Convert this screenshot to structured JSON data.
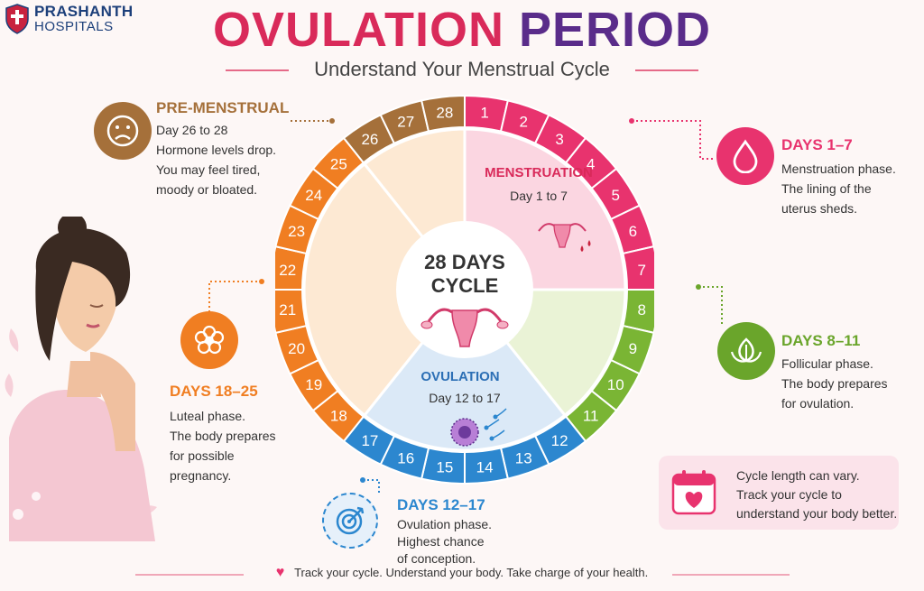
{
  "brand": {
    "line1": "PRASHANTH",
    "line2": "HOSPITALS"
  },
  "title": {
    "part1": "OVULATION",
    "part2": "PERIOD"
  },
  "subtitle": "Understand Your Menstrual Cycle",
  "center": {
    "line1": "28 DAYS",
    "line2": "CYCLE"
  },
  "wheel_segments": [
    {
      "name": "MENSTRUATION",
      "range": "Day 1 to 7",
      "days": [
        1,
        2,
        3,
        4,
        5,
        6,
        7
      ],
      "color": "#e8336e",
      "fill": "#fbd6e1"
    },
    {
      "name": "",
      "range": "",
      "days": [
        8,
        9,
        10,
        11
      ],
      "color": "#7ab534",
      "fill": "#eaf3d6"
    },
    {
      "name": "OVULATION",
      "range": "Day 12 to 17",
      "days": [
        12,
        13,
        14,
        15,
        16,
        17
      ],
      "color": "#2c87cf",
      "fill": "#dbe9f7"
    },
    {
      "name": "",
      "range": "",
      "days": [
        18,
        19,
        20,
        21,
        22,
        23,
        24,
        25
      ],
      "color": "#f07e22",
      "fill": "#fde9d3"
    },
    {
      "name": "",
      "range": "",
      "days": [
        26,
        27,
        28
      ],
      "color": "#a5703a",
      "fill": "#fde9d3"
    }
  ],
  "callouts": {
    "premenstrual": {
      "heading": "PRE-MENSTRUAL",
      "line1": "Day 26 to 28",
      "line2": "Hormone levels drop.",
      "line3": "You may feel tired,",
      "line4": "moody or bloated.",
      "icon": "sad-face-icon",
      "color": "#a5703a"
    },
    "days1_7": {
      "heading": "DAYS 1–7",
      "line1": "Menstruation phase.",
      "line2": "The lining of the",
      "line3": "uterus sheds.",
      "icon": "drop-icon",
      "color": "#e8336e"
    },
    "days8_11": {
      "heading": "DAYS 8–11",
      "line1": "Follicular phase.",
      "line2": "The body prepares",
      "line3": "for ovulation.",
      "icon": "leaf-icon",
      "color": "#6aa52b"
    },
    "days18_25": {
      "heading": "DAYS 18–25",
      "line1": "Luteal phase.",
      "line2": "The body prepares",
      "line3": "for possible",
      "line4": "pregnancy.",
      "icon": "flower-icon",
      "color": "#f07e22"
    },
    "days12_17": {
      "heading": "DAYS 12–17",
      "line1": "Ovulation phase.",
      "line2": "Highest chance",
      "line3": "of conception.",
      "icon": "target-icon",
      "color": "#2c87cf"
    }
  },
  "tip": {
    "line1": "Cycle length can vary.",
    "line2": "Track your cycle to",
    "line3": "understand your body better."
  },
  "footer": "Track your cycle. Understand your body. Take charge of your health."
}
